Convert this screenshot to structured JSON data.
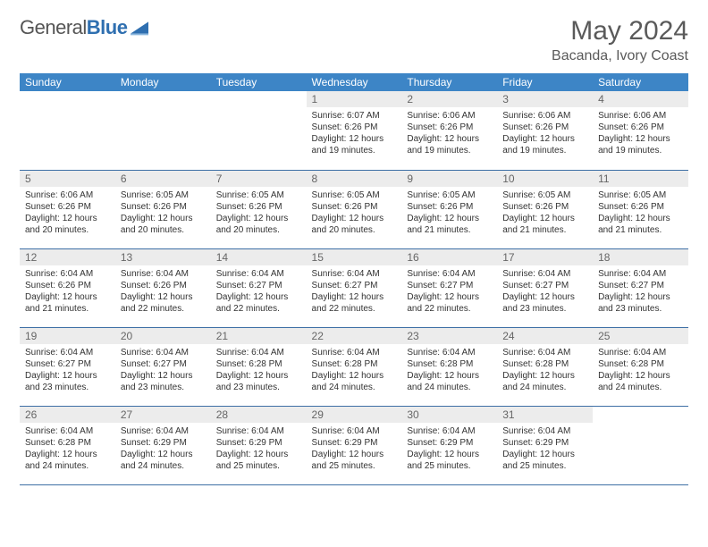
{
  "logo": {
    "text_general": "General",
    "text_blue": "Blue"
  },
  "month_title": "May 2024",
  "location": "Bacanda, Ivory Coast",
  "weekday_headers": [
    "Sunday",
    "Monday",
    "Tuesday",
    "Wednesday",
    "Thursday",
    "Friday",
    "Saturday"
  ],
  "colors": {
    "header_bg": "#3d85c6",
    "header_fg": "#ffffff",
    "daynum_bg": "#ececec",
    "daynum_fg": "#666666",
    "row_border": "#3d6fa5",
    "logo_blue": "#2f6fb0",
    "title_fg": "#5a5a5a"
  },
  "label_sunrise": "Sunrise:",
  "label_sunset": "Sunset:",
  "label_daylight": "Daylight:",
  "weeks": [
    [
      null,
      null,
      null,
      {
        "n": "1",
        "sr": "6:07 AM",
        "ss": "6:26 PM",
        "dl": "12 hours and 19 minutes."
      },
      {
        "n": "2",
        "sr": "6:06 AM",
        "ss": "6:26 PM",
        "dl": "12 hours and 19 minutes."
      },
      {
        "n": "3",
        "sr": "6:06 AM",
        "ss": "6:26 PM",
        "dl": "12 hours and 19 minutes."
      },
      {
        "n": "4",
        "sr": "6:06 AM",
        "ss": "6:26 PM",
        "dl": "12 hours and 19 minutes."
      }
    ],
    [
      {
        "n": "5",
        "sr": "6:06 AM",
        "ss": "6:26 PM",
        "dl": "12 hours and 20 minutes."
      },
      {
        "n": "6",
        "sr": "6:05 AM",
        "ss": "6:26 PM",
        "dl": "12 hours and 20 minutes."
      },
      {
        "n": "7",
        "sr": "6:05 AM",
        "ss": "6:26 PM",
        "dl": "12 hours and 20 minutes."
      },
      {
        "n": "8",
        "sr": "6:05 AM",
        "ss": "6:26 PM",
        "dl": "12 hours and 20 minutes."
      },
      {
        "n": "9",
        "sr": "6:05 AM",
        "ss": "6:26 PM",
        "dl": "12 hours and 21 minutes."
      },
      {
        "n": "10",
        "sr": "6:05 AM",
        "ss": "6:26 PM",
        "dl": "12 hours and 21 minutes."
      },
      {
        "n": "11",
        "sr": "6:05 AM",
        "ss": "6:26 PM",
        "dl": "12 hours and 21 minutes."
      }
    ],
    [
      {
        "n": "12",
        "sr": "6:04 AM",
        "ss": "6:26 PM",
        "dl": "12 hours and 21 minutes."
      },
      {
        "n": "13",
        "sr": "6:04 AM",
        "ss": "6:26 PM",
        "dl": "12 hours and 22 minutes."
      },
      {
        "n": "14",
        "sr": "6:04 AM",
        "ss": "6:27 PM",
        "dl": "12 hours and 22 minutes."
      },
      {
        "n": "15",
        "sr": "6:04 AM",
        "ss": "6:27 PM",
        "dl": "12 hours and 22 minutes."
      },
      {
        "n": "16",
        "sr": "6:04 AM",
        "ss": "6:27 PM",
        "dl": "12 hours and 22 minutes."
      },
      {
        "n": "17",
        "sr": "6:04 AM",
        "ss": "6:27 PM",
        "dl": "12 hours and 23 minutes."
      },
      {
        "n": "18",
        "sr": "6:04 AM",
        "ss": "6:27 PM",
        "dl": "12 hours and 23 minutes."
      }
    ],
    [
      {
        "n": "19",
        "sr": "6:04 AM",
        "ss": "6:27 PM",
        "dl": "12 hours and 23 minutes."
      },
      {
        "n": "20",
        "sr": "6:04 AM",
        "ss": "6:27 PM",
        "dl": "12 hours and 23 minutes."
      },
      {
        "n": "21",
        "sr": "6:04 AM",
        "ss": "6:28 PM",
        "dl": "12 hours and 23 minutes."
      },
      {
        "n": "22",
        "sr": "6:04 AM",
        "ss": "6:28 PM",
        "dl": "12 hours and 24 minutes."
      },
      {
        "n": "23",
        "sr": "6:04 AM",
        "ss": "6:28 PM",
        "dl": "12 hours and 24 minutes."
      },
      {
        "n": "24",
        "sr": "6:04 AM",
        "ss": "6:28 PM",
        "dl": "12 hours and 24 minutes."
      },
      {
        "n": "25",
        "sr": "6:04 AM",
        "ss": "6:28 PM",
        "dl": "12 hours and 24 minutes."
      }
    ],
    [
      {
        "n": "26",
        "sr": "6:04 AM",
        "ss": "6:28 PM",
        "dl": "12 hours and 24 minutes."
      },
      {
        "n": "27",
        "sr": "6:04 AM",
        "ss": "6:29 PM",
        "dl": "12 hours and 24 minutes."
      },
      {
        "n": "28",
        "sr": "6:04 AM",
        "ss": "6:29 PM",
        "dl": "12 hours and 25 minutes."
      },
      {
        "n": "29",
        "sr": "6:04 AM",
        "ss": "6:29 PM",
        "dl": "12 hours and 25 minutes."
      },
      {
        "n": "30",
        "sr": "6:04 AM",
        "ss": "6:29 PM",
        "dl": "12 hours and 25 minutes."
      },
      {
        "n": "31",
        "sr": "6:04 AM",
        "ss": "6:29 PM",
        "dl": "12 hours and 25 minutes."
      },
      null
    ]
  ]
}
